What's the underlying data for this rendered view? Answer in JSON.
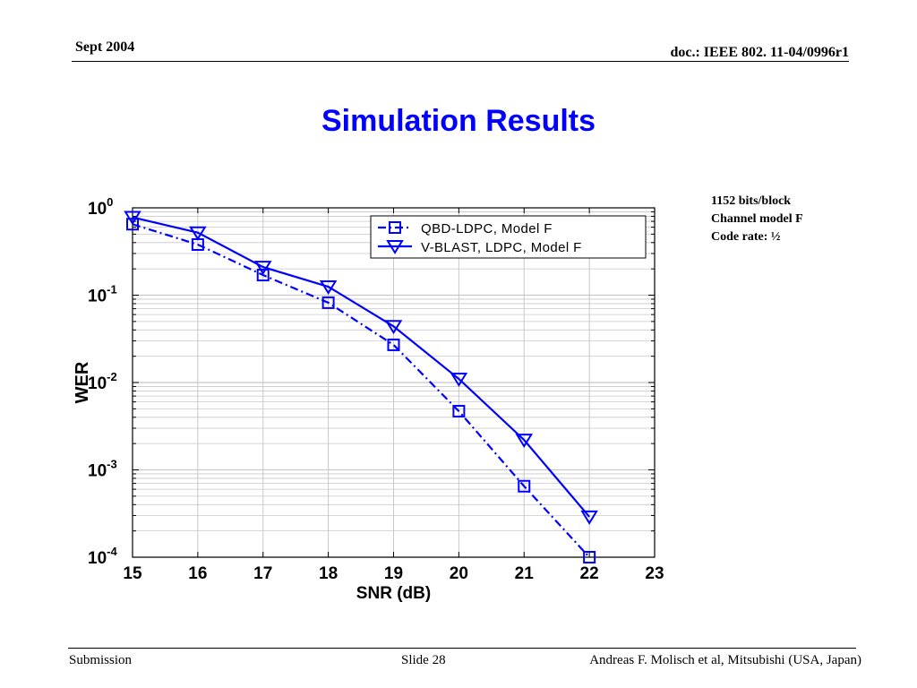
{
  "header": {
    "date": "Sept 2004",
    "doc_id": "doc.: IEEE 802. 11-04/0996r1"
  },
  "slide": {
    "title": "Simulation Results",
    "notes": [
      "1152 bits/block",
      "Channel model F",
      "Code rate: ½"
    ]
  },
  "footer": {
    "left": "Submission",
    "center": "Slide 28",
    "right": "Andreas F. Molisch et al, Mitsubishi (USA, Japan)"
  },
  "colors": {
    "title": "#0000ff",
    "series": "#0000ff",
    "grid": "#c8c8c8"
  },
  "chart_data": {
    "type": "line",
    "xlabel": "SNR (dB)",
    "ylabel": "WER",
    "xlim": [
      15,
      23
    ],
    "ylim": [
      0.0001,
      1
    ],
    "yscale": "log",
    "grid": true,
    "legend_position": "top-right",
    "x_ticks": [
      15,
      16,
      17,
      18,
      19,
      20,
      21,
      22,
      23
    ],
    "y_ticks": [
      {
        "value": 1,
        "base": "10",
        "exp": "0"
      },
      {
        "value": 0.1,
        "base": "10",
        "exp": "-1"
      },
      {
        "value": 0.01,
        "base": "10",
        "exp": "-2"
      },
      {
        "value": 0.001,
        "base": "10",
        "exp": "-3"
      },
      {
        "value": 0.0001,
        "base": "10",
        "exp": "-4"
      }
    ],
    "series": [
      {
        "name": "QBD-LDPC, Model F",
        "marker": "square",
        "line": "dashdot",
        "x": [
          15,
          16,
          17,
          18,
          19,
          20,
          21,
          22
        ],
        "y": [
          0.65,
          0.38,
          0.17,
          0.082,
          0.027,
          0.0047,
          0.00065,
          0.0001
        ]
      },
      {
        "name": "V-BLAST, LDPC, Model F",
        "marker": "triangle-down",
        "line": "solid",
        "x": [
          15,
          16,
          17,
          18,
          19,
          20,
          21,
          22
        ],
        "y": [
          0.78,
          0.52,
          0.21,
          0.125,
          0.044,
          0.011,
          0.0022,
          0.00029
        ]
      }
    ]
  }
}
